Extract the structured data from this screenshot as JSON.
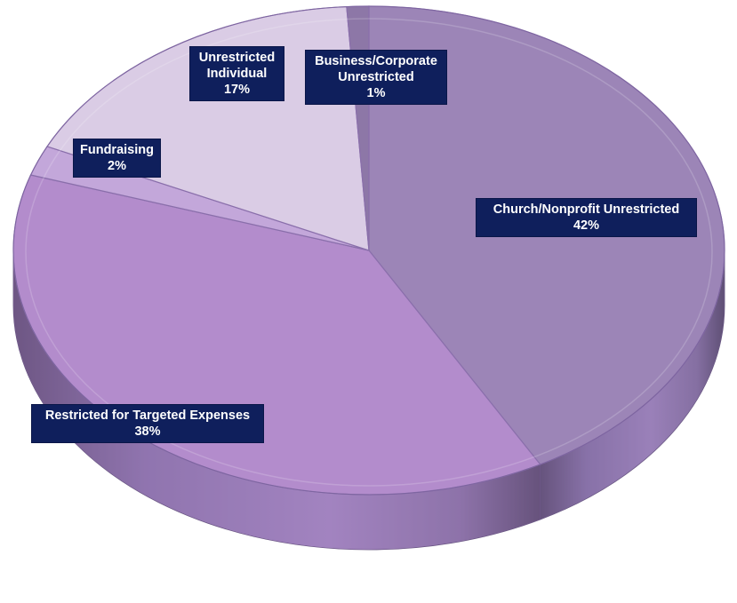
{
  "chart_data": {
    "type": "pie",
    "title": "",
    "slices": [
      {
        "label": "Church/Nonprofit Unrestricted",
        "value": 42,
        "value_label": "42%",
        "color": "#9c85b7"
      },
      {
        "label": "Restricted for Targeted Expenses",
        "value": 38,
        "value_label": "38%",
        "color": "#b38ccc"
      },
      {
        "label": "Fundraising",
        "value": 2,
        "value_label": "2%",
        "color": "#c3a7da"
      },
      {
        "label": "Unrestricted Individual",
        "value": 17,
        "value_label": "17%",
        "color": "#dacce5"
      },
      {
        "label": "Business/Corporate Unrestricted",
        "value": 1,
        "value_label": "1%",
        "color": "#8d77a7"
      }
    ],
    "legend": "none",
    "label_style": {
      "background": "#0f1f5c",
      "text_color": "#ffffff"
    }
  }
}
